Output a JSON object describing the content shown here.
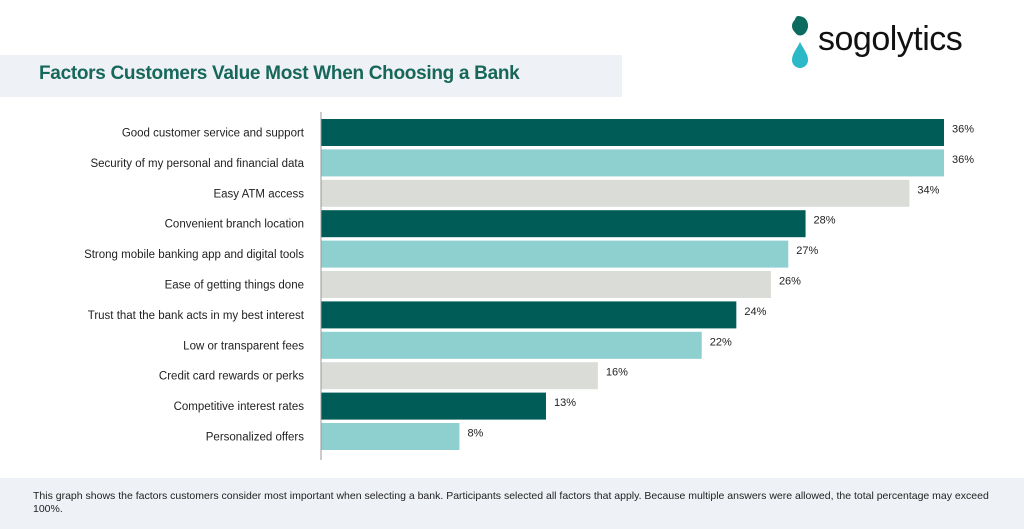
{
  "logo": {
    "text": "sogolytics"
  },
  "footer": {
    "note": "This graph shows the factors customers consider most important when selecting a bank. Participants selected all factors that apply. Because multiple answers were allowed, the total percentage may exceed 100%."
  },
  "colors": {
    "dark_teal": "#005c56",
    "light_teal": "#8ecfcf",
    "grey": "#d9dcd7",
    "title": "#17675a"
  },
  "chart_data": {
    "type": "bar",
    "orientation": "horizontal",
    "title": "Factors Customers Value Most When Choosing a Bank",
    "categories": [
      "Good customer service and support",
      "Security of my personal and financial data",
      "Easy ATM access",
      "Convenient branch location",
      "Strong mobile banking app and digital tools",
      "Ease of getting things done",
      "Trust that the bank acts in my best interest",
      "Low or transparent fees",
      "Credit card rewards or perks",
      "Competitive interest rates",
      "Personalized offers"
    ],
    "values": [
      36,
      36,
      34,
      28,
      27,
      26,
      24,
      22,
      16,
      13,
      8
    ],
    "value_labels": [
      "36%",
      "36%",
      "34%",
      "28%",
      "27%",
      "26%",
      "24%",
      "22%",
      "16%",
      "13%",
      "8%"
    ],
    "bar_colors": [
      "#005c56",
      "#8ecfcf",
      "#d9dcd7",
      "#005c56",
      "#8ecfcf",
      "#d9dcd7",
      "#005c56",
      "#8ecfcf",
      "#d9dcd7",
      "#005c56",
      "#8ecfcf"
    ],
    "unit": "%",
    "xlim": [
      0,
      36
    ],
    "grid": false,
    "legend": "none"
  }
}
